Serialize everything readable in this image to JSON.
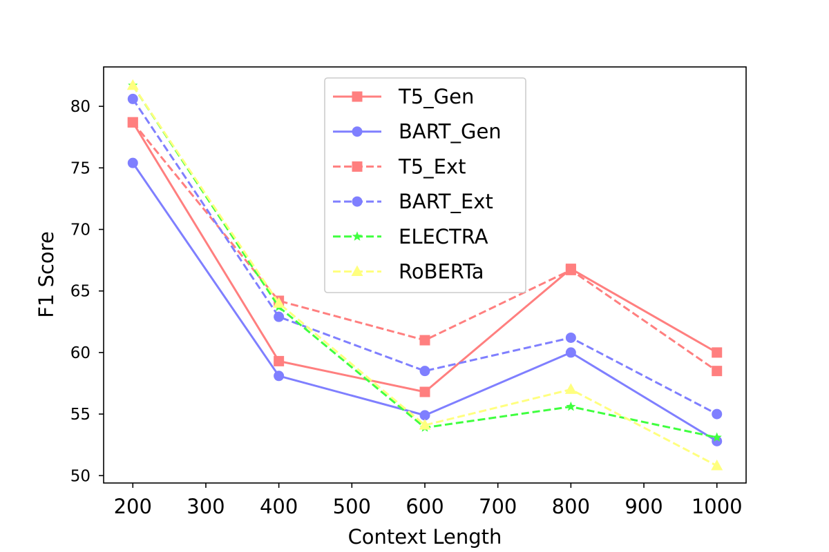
{
  "chart_data": {
    "type": "line",
    "title": "",
    "xlabel": "Context Length",
    "ylabel": "F1 Score",
    "xlim": [
      160,
      1040
    ],
    "ylim": [
      49.4,
      83.2
    ],
    "xticks": [
      200,
      300,
      400,
      500,
      600,
      700,
      800,
      900,
      1000
    ],
    "yticks": [
      50,
      55,
      60,
      65,
      70,
      75,
      80
    ],
    "grid": false,
    "legend_position": "upper center",
    "x": [
      200,
      400,
      600,
      800,
      1000
    ],
    "series": [
      {
        "name": "T5_Gen",
        "values": [
          78.7,
          59.3,
          56.8,
          66.8,
          60.0
        ],
        "color": "#ff7f7f",
        "linestyle": "solid",
        "marker": "square"
      },
      {
        "name": "BART_Gen",
        "values": [
          75.4,
          58.1,
          54.9,
          60.0,
          52.8
        ],
        "color": "#7f7fff",
        "linestyle": "solid",
        "marker": "circle"
      },
      {
        "name": "T5_Ext",
        "values": [
          78.7,
          64.2,
          61.0,
          66.7,
          58.5
        ],
        "color": "#ff7f7f",
        "linestyle": "dashed",
        "marker": "square"
      },
      {
        "name": "BART_Ext",
        "values": [
          80.6,
          62.9,
          58.5,
          61.2,
          55.0
        ],
        "color": "#7f7fff",
        "linestyle": "dashed",
        "marker": "circle"
      },
      {
        "name": "ELECTRA",
        "values": [
          81.7,
          63.7,
          53.9,
          55.6,
          53.1
        ],
        "color": "#3fff3f",
        "linestyle": "dashed",
        "marker": "star"
      },
      {
        "name": "RoBERTa",
        "values": [
          81.7,
          64.0,
          54.1,
          57.0,
          50.8
        ],
        "color": "#ffff7f",
        "linestyle": "dashed",
        "marker": "triangle"
      }
    ]
  }
}
